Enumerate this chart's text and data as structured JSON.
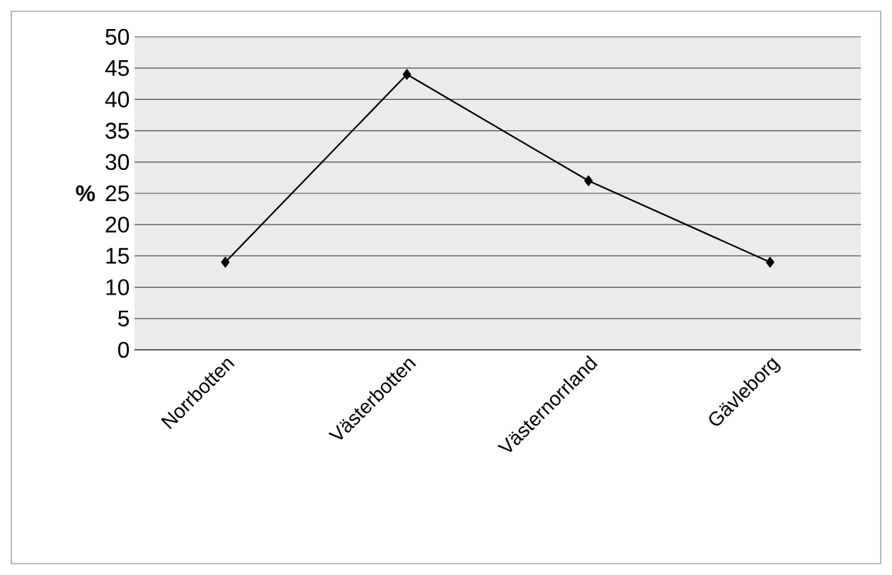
{
  "chart_data": {
    "type": "line",
    "ylabel": "%",
    "categories": [
      "Norrbotten",
      "Västerbotten",
      "Västernorrland",
      "Gävleborg"
    ],
    "series": [
      {
        "color": "#000000",
        "values": [
          14,
          44,
          27,
          14
        ]
      }
    ],
    "ylim": [
      0,
      50
    ],
    "yticks": [
      0,
      5,
      10,
      15,
      20,
      25,
      30,
      35,
      40,
      45,
      50
    ],
    "grid": "y",
    "marker": "diamond",
    "line_style": "solid"
  }
}
